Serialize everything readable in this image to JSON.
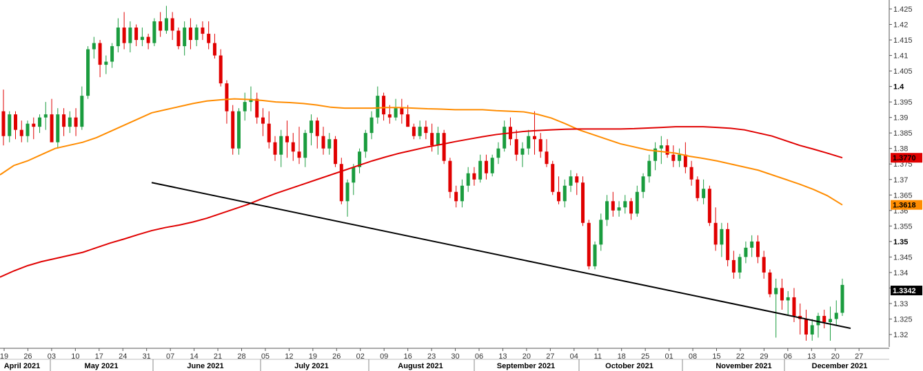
{
  "chart_data": {
    "type": "candlestick",
    "instrument": "",
    "timeframe": "daily",
    "y_ticks": [
      1.425,
      1.42,
      1.415,
      1.41,
      1.405,
      1.4,
      1.395,
      1.39,
      1.385,
      1.38,
      1.375,
      1.37,
      1.365,
      1.36,
      1.355,
      1.35,
      1.345,
      1.34,
      1.335,
      1.33,
      1.325,
      1.32
    ],
    "y_tick_labels": [
      "1.425",
      "1.42",
      "1.415",
      "1.41",
      "1.405",
      "1.4",
      "1.395",
      "1.39",
      "1.385",
      "1.38",
      "1.375",
      "1.37",
      "1.365",
      "1.36",
      "1.355",
      "1.35",
      "1.345",
      "1.34",
      "1.335",
      "1.33",
      "1.325",
      "1.32"
    ],
    "bold_ticks": [
      "1.4",
      "1.35"
    ],
    "ylim": [
      1.316,
      1.427
    ],
    "date_ticks": [
      "19",
      "26",
      "03",
      "10",
      "17",
      "24",
      "31",
      "07",
      "14",
      "21",
      "28",
      "05",
      "12",
      "19",
      "26",
      "02",
      "09",
      "16",
      "23",
      "30",
      "06",
      "13",
      "20",
      "27",
      "04",
      "11",
      "18",
      "25",
      "01",
      "08",
      "15",
      "22",
      "29",
      "06",
      "13",
      "20",
      "27"
    ],
    "months": [
      "April 2021",
      "May 2021",
      "June 2021",
      "July 2021",
      "August 2021",
      "September 2021",
      "October 2021",
      "November 2021",
      "December 2021"
    ],
    "candles_ohlc": [
      [
        1.392,
        1.399,
        1.381,
        1.384
      ],
      [
        1.384,
        1.392,
        1.382,
        1.391
      ],
      [
        1.391,
        1.392,
        1.383,
        1.386
      ],
      [
        1.386,
        1.389,
        1.382,
        1.384
      ],
      [
        1.384,
        1.389,
        1.382,
        1.388
      ],
      [
        1.388,
        1.39,
        1.383,
        1.387
      ],
      [
        1.387,
        1.391,
        1.385,
        1.39
      ],
      [
        1.39,
        1.395,
        1.386,
        1.391
      ],
      [
        1.391,
        1.396,
        1.386,
        1.382
      ],
      [
        1.382,
        1.393,
        1.38,
        1.391
      ],
      [
        1.391,
        1.393,
        1.384,
        1.387
      ],
      [
        1.387,
        1.392,
        1.385,
        1.39
      ],
      [
        1.39,
        1.393,
        1.384,
        1.387
      ],
      [
        1.387,
        1.4,
        1.386,
        1.397
      ],
      [
        1.397,
        1.413,
        1.396,
        1.412
      ],
      [
        1.412,
        1.416,
        1.409,
        1.414
      ],
      [
        1.414,
        1.415,
        1.403,
        1.407
      ],
      [
        1.407,
        1.41,
        1.404,
        1.408
      ],
      [
        1.408,
        1.414,
        1.406,
        1.413
      ],
      [
        1.413,
        1.422,
        1.411,
        1.419
      ],
      [
        1.419,
        1.424,
        1.412,
        1.414
      ],
      [
        1.414,
        1.421,
        1.411,
        1.419
      ],
      [
        1.419,
        1.42,
        1.413,
        1.415
      ],
      [
        1.415,
        1.419,
        1.413,
        1.416
      ],
      [
        1.416,
        1.417,
        1.412,
        1.414
      ],
      [
        1.414,
        1.422,
        1.413,
        1.421
      ],
      [
        1.421,
        1.424,
        1.416,
        1.418
      ],
      [
        1.418,
        1.426,
        1.417,
        1.422
      ],
      [
        1.422,
        1.424,
        1.415,
        1.418
      ],
      [
        1.418,
        1.419,
        1.412,
        1.413
      ],
      [
        1.413,
        1.421,
        1.41,
        1.419
      ],
      [
        1.419,
        1.422,
        1.412,
        1.415
      ],
      [
        1.415,
        1.42,
        1.413,
        1.419
      ],
      [
        1.419,
        1.421,
        1.415,
        1.417
      ],
      [
        1.417,
        1.421,
        1.412,
        1.414
      ],
      [
        1.414,
        1.417,
        1.409,
        1.41
      ],
      [
        1.41,
        1.412,
        1.4,
        1.401
      ],
      [
        1.401,
        1.402,
        1.388,
        1.392
      ],
      [
        1.392,
        1.394,
        1.378,
        1.38
      ],
      [
        1.38,
        1.393,
        1.378,
        1.392
      ],
      [
        1.392,
        1.398,
        1.389,
        1.395
      ],
      [
        1.395,
        1.4,
        1.392,
        1.396
      ],
      [
        1.396,
        1.398,
        1.388,
        1.39
      ],
      [
        1.39,
        1.393,
        1.384,
        1.388
      ],
      [
        1.388,
        1.392,
        1.38,
        1.382
      ],
      [
        1.382,
        1.384,
        1.376,
        1.378
      ],
      [
        1.378,
        1.386,
        1.374,
        1.384
      ],
      [
        1.384,
        1.389,
        1.377,
        1.382
      ],
      [
        1.382,
        1.385,
        1.376,
        1.379
      ],
      [
        1.379,
        1.387,
        1.375,
        1.377
      ],
      [
        1.377,
        1.386,
        1.374,
        1.385
      ],
      [
        1.385,
        1.391,
        1.381,
        1.389
      ],
      [
        1.389,
        1.39,
        1.38,
        1.384
      ],
      [
        1.384,
        1.387,
        1.378,
        1.38
      ],
      [
        1.38,
        1.385,
        1.378,
        1.383
      ],
      [
        1.383,
        1.384,
        1.374,
        1.375
      ],
      [
        1.375,
        1.377,
        1.362,
        1.363
      ],
      [
        1.363,
        1.37,
        1.358,
        1.369
      ],
      [
        1.369,
        1.375,
        1.365,
        1.374
      ],
      [
        1.374,
        1.38,
        1.372,
        1.379
      ],
      [
        1.379,
        1.386,
        1.377,
        1.385
      ],
      [
        1.385,
        1.392,
        1.383,
        1.39
      ],
      [
        1.39,
        1.4,
        1.388,
        1.397
      ],
      [
        1.397,
        1.398,
        1.389,
        1.391
      ],
      [
        1.391,
        1.394,
        1.388,
        1.39
      ],
      [
        1.39,
        1.396,
        1.389,
        1.393
      ],
      [
        1.393,
        1.396,
        1.388,
        1.391
      ],
      [
        1.391,
        1.394,
        1.387,
        1.387
      ],
      [
        1.387,
        1.388,
        1.383,
        1.384
      ],
      [
        1.384,
        1.389,
        1.383,
        1.387
      ],
      [
        1.387,
        1.389,
        1.383,
        1.385
      ],
      [
        1.385,
        1.388,
        1.379,
        1.381
      ],
      [
        1.381,
        1.387,
        1.378,
        1.385
      ],
      [
        1.385,
        1.386,
        1.375,
        1.376
      ],
      [
        1.376,
        1.377,
        1.364,
        1.366
      ],
      [
        1.366,
        1.368,
        1.361,
        1.363
      ],
      [
        1.363,
        1.37,
        1.361,
        1.368
      ],
      [
        1.368,
        1.374,
        1.366,
        1.372
      ],
      [
        1.372,
        1.374,
        1.368,
        1.37
      ],
      [
        1.37,
        1.378,
        1.369,
        1.376
      ],
      [
        1.376,
        1.378,
        1.37,
        1.372
      ],
      [
        1.372,
        1.378,
        1.371,
        1.377
      ],
      [
        1.377,
        1.382,
        1.375,
        1.38
      ],
      [
        1.38,
        1.389,
        1.379,
        1.387
      ],
      [
        1.387,
        1.39,
        1.381,
        1.383
      ],
      [
        1.383,
        1.386,
        1.376,
        1.378
      ],
      [
        1.378,
        1.382,
        1.374,
        1.38
      ],
      [
        1.38,
        1.386,
        1.378,
        1.384
      ],
      [
        1.384,
        1.392,
        1.378,
        1.383
      ],
      [
        1.383,
        1.385,
        1.377,
        1.379
      ],
      [
        1.379,
        1.383,
        1.374,
        1.375
      ],
      [
        1.375,
        1.376,
        1.365,
        1.366
      ],
      [
        1.366,
        1.371,
        1.362,
        1.363
      ],
      [
        1.363,
        1.37,
        1.361,
        1.368
      ],
      [
        1.368,
        1.373,
        1.366,
        1.371
      ],
      [
        1.371,
        1.372,
        1.365,
        1.369
      ],
      [
        1.369,
        1.371,
        1.355,
        1.356
      ],
      [
        1.356,
        1.357,
        1.341,
        1.342
      ],
      [
        1.342,
        1.35,
        1.341,
        1.349
      ],
      [
        1.349,
        1.359,
        1.347,
        1.357
      ],
      [
        1.357,
        1.365,
        1.355,
        1.363
      ],
      [
        1.363,
        1.366,
        1.358,
        1.36
      ],
      [
        1.36,
        1.363,
        1.358,
        1.361
      ],
      [
        1.361,
        1.365,
        1.359,
        1.363
      ],
      [
        1.363,
        1.364,
        1.357,
        1.359
      ],
      [
        1.359,
        1.368,
        1.358,
        1.366
      ],
      [
        1.366,
        1.372,
        1.364,
        1.371
      ],
      [
        1.371,
        1.378,
        1.369,
        1.376
      ],
      [
        1.376,
        1.382,
        1.373,
        1.38
      ],
      [
        1.38,
        1.384,
        1.375,
        1.381
      ],
      [
        1.381,
        1.383,
        1.377,
        1.378
      ],
      [
        1.378,
        1.381,
        1.374,
        1.376
      ],
      [
        1.376,
        1.38,
        1.374,
        1.378
      ],
      [
        1.378,
        1.382,
        1.372,
        1.374
      ],
      [
        1.374,
        1.376,
        1.368,
        1.37
      ],
      [
        1.37,
        1.371,
        1.363,
        1.364
      ],
      [
        1.364,
        1.37,
        1.362,
        1.367
      ],
      [
        1.367,
        1.368,
        1.355,
        1.356
      ],
      [
        1.356,
        1.361,
        1.347,
        1.349
      ],
      [
        1.349,
        1.356,
        1.345,
        1.354
      ],
      [
        1.354,
        1.356,
        1.342,
        1.344
      ],
      [
        1.344,
        1.347,
        1.338,
        1.34
      ],
      [
        1.34,
        1.346,
        1.338,
        1.345
      ],
      [
        1.345,
        1.35,
        1.343,
        1.348
      ],
      [
        1.348,
        1.352,
        1.345,
        1.35
      ],
      [
        1.35,
        1.352,
        1.343,
        1.345
      ],
      [
        1.345,
        1.347,
        1.338,
        1.34
      ],
      [
        1.34,
        1.341,
        1.332,
        1.333
      ],
      [
        1.333,
        1.338,
        1.319,
        1.335
      ],
      [
        1.335,
        1.338,
        1.328,
        1.331
      ],
      [
        1.331,
        1.334,
        1.326,
        1.332
      ],
      [
        1.332,
        1.335,
        1.324,
        1.326
      ],
      [
        1.326,
        1.33,
        1.32,
        1.325
      ],
      [
        1.325,
        1.328,
        1.318,
        1.32
      ],
      [
        1.32,
        1.325,
        1.318,
        1.323
      ],
      [
        1.323,
        1.327,
        1.319,
        1.326
      ],
      [
        1.326,
        1.328,
        1.322,
        1.324
      ],
      [
        1.324,
        1.329,
        1.318,
        1.325
      ],
      [
        1.325,
        1.331,
        1.323,
        1.327
      ],
      [
        1.327,
        1.338,
        1.326,
        1.336
      ]
    ],
    "ma_orange": [
      [
        0,
        1.3715
      ],
      [
        20,
        1.3745
      ],
      [
        40,
        1.376
      ],
      [
        60,
        1.378
      ],
      [
        80,
        1.38
      ],
      [
        100,
        1.381
      ],
      [
        120,
        1.382
      ],
      [
        140,
        1.3835
      ],
      [
        160,
        1.3855
      ],
      [
        180,
        1.3875
      ],
      [
        200,
        1.3895
      ],
      [
        220,
        1.3915
      ],
      [
        240,
        1.3925
      ],
      [
        260,
        1.3935
      ],
      [
        280,
        1.3945
      ],
      [
        300,
        1.3953
      ],
      [
        320,
        1.3957
      ],
      [
        340,
        1.396
      ],
      [
        360,
        1.3958
      ],
      [
        380,
        1.3955
      ],
      [
        400,
        1.395
      ],
      [
        420,
        1.3948
      ],
      [
        440,
        1.3945
      ],
      [
        460,
        1.394
      ],
      [
        480,
        1.3933
      ],
      [
        500,
        1.393
      ],
      [
        520,
        1.393
      ],
      [
        540,
        1.393
      ],
      [
        560,
        1.3932
      ],
      [
        580,
        1.3932
      ],
      [
        600,
        1.393
      ],
      [
        620,
        1.3928
      ],
      [
        640,
        1.3927
      ],
      [
        660,
        1.3925
      ],
      [
        680,
        1.3925
      ],
      [
        700,
        1.3925
      ],
      [
        720,
        1.3922
      ],
      [
        740,
        1.392
      ],
      [
        760,
        1.3918
      ],
      [
        780,
        1.391
      ],
      [
        800,
        1.3898
      ],
      [
        820,
        1.388
      ],
      [
        840,
        1.386
      ],
      [
        860,
        1.3845
      ],
      [
        880,
        1.383
      ],
      [
        900,
        1.3815
      ],
      [
        920,
        1.3805
      ],
      [
        940,
        1.3795
      ],
      [
        960,
        1.379
      ],
      [
        980,
        1.3785
      ],
      [
        1000,
        1.3775
      ],
      [
        1020,
        1.3768
      ],
      [
        1040,
        1.376
      ],
      [
        1060,
        1.375
      ],
      [
        1080,
        1.374
      ],
      [
        1100,
        1.373
      ],
      [
        1120,
        1.3715
      ],
      [
        1140,
        1.37
      ],
      [
        1160,
        1.3685
      ],
      [
        1180,
        1.3668
      ],
      [
        1200,
        1.3648
      ],
      [
        1222,
        1.3618
      ]
    ],
    "ma_red": [
      [
        0,
        1.3385
      ],
      [
        20,
        1.3405
      ],
      [
        40,
        1.3422
      ],
      [
        60,
        1.3435
      ],
      [
        80,
        1.3445
      ],
      [
        100,
        1.3455
      ],
      [
        120,
        1.3465
      ],
      [
        140,
        1.348
      ],
      [
        160,
        1.3495
      ],
      [
        180,
        1.3508
      ],
      [
        200,
        1.3522
      ],
      [
        220,
        1.3535
      ],
      [
        240,
        1.3545
      ],
      [
        260,
        1.3553
      ],
      [
        280,
        1.3563
      ],
      [
        300,
        1.3575
      ],
      [
        320,
        1.359
      ],
      [
        340,
        1.3605
      ],
      [
        360,
        1.362
      ],
      [
        380,
        1.3638
      ],
      [
        400,
        1.3655
      ],
      [
        420,
        1.367
      ],
      [
        440,
        1.3685
      ],
      [
        460,
        1.37
      ],
      [
        480,
        1.3715
      ],
      [
        500,
        1.373
      ],
      [
        520,
        1.3745
      ],
      [
        540,
        1.376
      ],
      [
        560,
        1.3773
      ],
      [
        580,
        1.3785
      ],
      [
        600,
        1.3795
      ],
      [
        620,
        1.3805
      ],
      [
        640,
        1.3813
      ],
      [
        660,
        1.3822
      ],
      [
        680,
        1.383
      ],
      [
        700,
        1.3838
      ],
      [
        720,
        1.3845
      ],
      [
        740,
        1.385
      ],
      [
        760,
        1.3855
      ],
      [
        780,
        1.3858
      ],
      [
        800,
        1.386
      ],
      [
        820,
        1.3862
      ],
      [
        840,
        1.3863
      ],
      [
        860,
        1.3863
      ],
      [
        880,
        1.3863
      ],
      [
        900,
        1.3863
      ],
      [
        920,
        1.3864
      ],
      [
        940,
        1.3866
      ],
      [
        960,
        1.3868
      ],
      [
        980,
        1.387
      ],
      [
        1000,
        1.387
      ],
      [
        1020,
        1.387
      ],
      [
        1040,
        1.3868
      ],
      [
        1060,
        1.3865
      ],
      [
        1080,
        1.386
      ],
      [
        1100,
        1.385
      ],
      [
        1120,
        1.384
      ],
      [
        1140,
        1.3825
      ],
      [
        1160,
        1.381
      ],
      [
        1180,
        1.3798
      ],
      [
        1200,
        1.3785
      ],
      [
        1222,
        1.377
      ]
    ],
    "trendline": [
      [
        220,
        1.369
      ],
      [
        1234,
        1.322
      ]
    ],
    "price_tags": [
      {
        "label": "1.3770",
        "value": 1.377,
        "bg": "#e00000",
        "color": "#000000"
      },
      {
        "label": "1.3618",
        "value": 1.3618,
        "bg": "#ff8c00",
        "color": "#000000"
      },
      {
        "label": "1.3342",
        "value": 1.3342,
        "bg": "#000000",
        "color": "#ffffff"
      }
    ],
    "grid": false,
    "legend": "none"
  },
  "colors": {
    "up": "#1a9c3e",
    "down": "#e00000",
    "ma_fast": "#ff8c00",
    "ma_slow": "#e00000",
    "trendline": "#000000",
    "axis": "#555555"
  }
}
